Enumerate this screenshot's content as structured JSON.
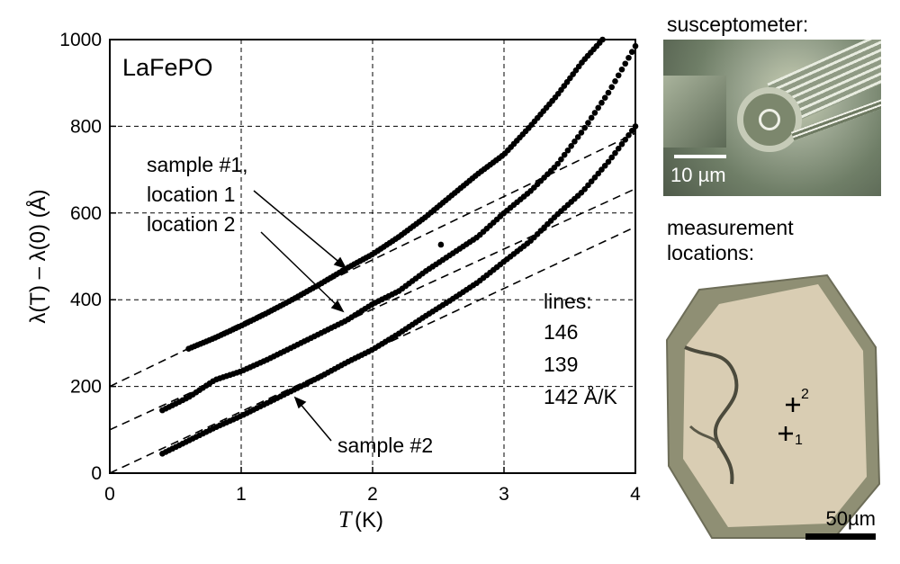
{
  "chart_data": {
    "type": "scatter",
    "title": "LaFePO",
    "xlabel": "T",
    "xlabel_unit": "(K)",
    "ylabel": "λ(T) – λ(0) (Å)",
    "xlim": [
      0,
      4
    ],
    "ylim": [
      0,
      1000
    ],
    "x_ticks": [
      0,
      1,
      2,
      3,
      4
    ],
    "y_ticks": [
      0,
      200,
      400,
      600,
      800,
      1000
    ],
    "grid": true,
    "series": [
      {
        "name": "sample #1, location 1",
        "points": [
          [
            0.6,
            287
          ],
          [
            0.8,
            312
          ],
          [
            1.0,
            340
          ],
          [
            1.2,
            370
          ],
          [
            1.4,
            402
          ],
          [
            1.6,
            436
          ],
          [
            1.8,
            472
          ],
          [
            2.0,
            505
          ],
          [
            2.2,
            545
          ],
          [
            2.4,
            590
          ],
          [
            2.6,
            640
          ],
          [
            2.8,
            690
          ],
          [
            3.0,
            735
          ],
          [
            3.2,
            800
          ],
          [
            3.4,
            870
          ],
          [
            3.6,
            950
          ],
          [
            3.75,
            1000
          ]
        ],
        "fit_line": {
          "intercept": 200,
          "slope": 146
        }
      },
      {
        "name": "location 2",
        "points": [
          [
            0.4,
            145
          ],
          [
            0.6,
            175
          ],
          [
            0.8,
            215
          ],
          [
            1.0,
            235
          ],
          [
            1.2,
            262
          ],
          [
            1.4,
            292
          ],
          [
            1.6,
            322
          ],
          [
            1.8,
            352
          ],
          [
            2.0,
            390
          ],
          [
            2.2,
            420
          ],
          [
            2.4,
            465
          ],
          [
            2.6,
            505
          ],
          [
            2.8,
            545
          ],
          [
            3.0,
            600
          ],
          [
            3.2,
            650
          ],
          [
            3.4,
            710
          ],
          [
            3.6,
            790
          ],
          [
            3.8,
            880
          ],
          [
            4.0,
            985
          ]
        ],
        "fit_line": {
          "intercept": 100,
          "slope": 139
        }
      },
      {
        "name": "sample #2",
        "points": [
          [
            0.4,
            45
          ],
          [
            0.6,
            75
          ],
          [
            0.8,
            105
          ],
          [
            1.0,
            132
          ],
          [
            1.2,
            162
          ],
          [
            1.4,
            192
          ],
          [
            1.6,
            222
          ],
          [
            1.8,
            255
          ],
          [
            2.0,
            285
          ],
          [
            2.2,
            322
          ],
          [
            2.4,
            362
          ],
          [
            2.6,
            400
          ],
          [
            2.8,
            440
          ],
          [
            3.0,
            488
          ],
          [
            3.2,
            535
          ],
          [
            3.4,
            595
          ],
          [
            3.6,
            650
          ],
          [
            3.8,
            720
          ],
          [
            4.0,
            800
          ]
        ],
        "fit_line": {
          "intercept": 0,
          "slope": 142
        }
      }
    ],
    "outliers": [
      [
        2.52,
        527
      ]
    ],
    "annotations": {
      "sample1_line1": "sample #1,",
      "sample1_line2": "location 1",
      "location2": "location 2",
      "sample2": "sample #2",
      "lines_header": "lines:",
      "slope1": "146",
      "slope2": "139",
      "slope3": "142 Å/K"
    }
  },
  "side_panels": {
    "top_title": "susceptometer:",
    "scale_bar_top": "10 µm",
    "bottom_title_line1": "measurement",
    "bottom_title_line2": "locations:",
    "marker_1": "1",
    "marker_2": "2",
    "scale_bar_bottom": "50µm"
  }
}
